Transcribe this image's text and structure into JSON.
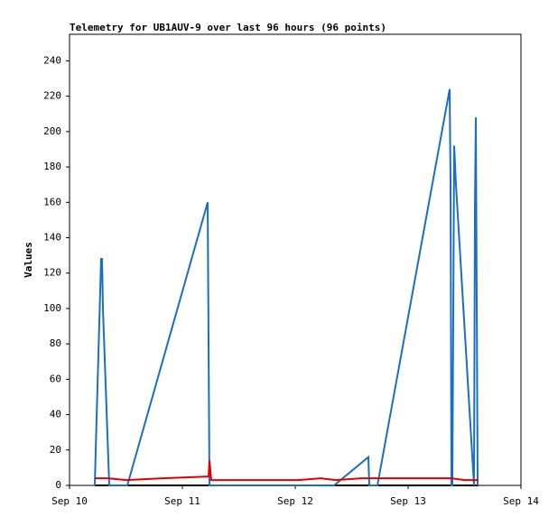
{
  "chart_data": {
    "type": "line",
    "title": "Telemetry for UB1AUV-9 over last 96 hours (96 points)",
    "y_label": "Values",
    "xlim": [
      0,
      4
    ],
    "xticks": [
      {
        "value": 0,
        "label": "Sep 10"
      },
      {
        "value": 1,
        "label": "Sep 11"
      },
      {
        "value": 2,
        "label": "Sep 12"
      },
      {
        "value": 3,
        "label": "Sep 13"
      },
      {
        "value": 4,
        "label": "Sep 14"
      }
    ],
    "ylim": [
      0,
      255
    ],
    "yticks": [
      0,
      20,
      40,
      60,
      80,
      100,
      120,
      140,
      160,
      180,
      200,
      220,
      240
    ],
    "grid": false,
    "series": [
      {
        "color": "#000000",
        "x": [
          0.224,
          3.624
        ],
        "values": [
          0,
          0
        ]
      },
      {
        "color": "#1a6fc4",
        "x": [
          0.224,
          0.232,
          0.28,
          0.288,
          0.296,
          0.352,
          0.512,
          1.224,
          1.232,
          1.24,
          2.344,
          2.648,
          2.656,
          2.728,
          3.368,
          3.376,
          3.384,
          3.392,
          3.408,
          3.424,
          3.584,
          3.592,
          3.6,
          3.608,
          3.616
        ],
        "values": [
          0,
          20,
          128,
          128,
          100,
          0,
          0,
          160,
          80,
          0,
          0,
          16,
          0,
          0,
          224,
          170,
          0,
          0,
          192,
          170,
          0,
          156,
          208,
          105,
          0
        ]
      },
      {
        "color": "#e00000",
        "x": [
          0.224,
          0.344,
          0.504,
          0.824,
          1.208,
          1.232,
          1.24,
          1.256,
          2.024,
          2.224,
          2.36,
          2.584,
          3.384,
          3.504,
          3.624
        ],
        "values": [
          4,
          4,
          3,
          4,
          5,
          5,
          14,
          3,
          3,
          4,
          3,
          4,
          4,
          3,
          3
        ]
      }
    ]
  }
}
